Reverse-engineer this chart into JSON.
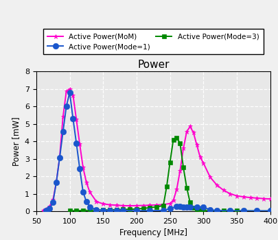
{
  "title": "Power",
  "xlabel": "Frequency [MHz]",
  "ylabel": "Power [mW]",
  "xlim": [
    50,
    400
  ],
  "ylim": [
    0,
    8
  ],
  "yticks": [
    0,
    1,
    2,
    3,
    4,
    5,
    6,
    7,
    8
  ],
  "xticks": [
    50,
    100,
    150,
    200,
    250,
    300,
    350,
    400
  ],
  "plot_bg": "#e8e8e8",
  "fig_bg": "#f0f0f0",
  "series": {
    "mom": {
      "label": "Active Power(MoM)",
      "color": "#ff00cc",
      "marker": "*",
      "marker_size": 5,
      "linewidth": 1.4
    },
    "mode1": {
      "label": "Active Power(Mode=1)",
      "color": "#1a56cc",
      "marker": "o",
      "marker_size": 6,
      "linewidth": 1.4
    },
    "mode3": {
      "label": "Active Power(Mode=3)",
      "color": "#008800",
      "marker": "s",
      "marker_size": 5,
      "linewidth": 1.4
    }
  },
  "mom_x": [
    60,
    65,
    70,
    75,
    80,
    85,
    90,
    95,
    100,
    105,
    110,
    115,
    120,
    125,
    130,
    140,
    150,
    160,
    170,
    180,
    190,
    200,
    210,
    220,
    230,
    240,
    250,
    255,
    260,
    265,
    270,
    275,
    280,
    285,
    290,
    295,
    300,
    310,
    320,
    330,
    340,
    350,
    360,
    370,
    380,
    390,
    400
  ],
  "mom_y": [
    0.05,
    0.12,
    0.28,
    0.65,
    1.65,
    3.1,
    5.4,
    6.85,
    7.0,
    6.65,
    5.25,
    3.85,
    2.5,
    1.65,
    1.1,
    0.55,
    0.42,
    0.37,
    0.34,
    0.32,
    0.31,
    0.32,
    0.33,
    0.34,
    0.36,
    0.38,
    0.44,
    0.62,
    1.25,
    2.3,
    3.6,
    4.55,
    4.85,
    4.5,
    3.8,
    3.1,
    2.75,
    1.95,
    1.5,
    1.2,
    1.0,
    0.88,
    0.82,
    0.78,
    0.75,
    0.72,
    0.7
  ],
  "mode1_x": [
    65,
    70,
    75,
    80,
    85,
    90,
    95,
    100,
    105,
    110,
    115,
    120,
    125,
    130,
    140,
    150,
    160,
    170,
    180,
    200,
    220,
    240,
    250,
    260,
    265,
    270,
    275,
    280,
    290,
    300,
    310,
    320,
    340,
    360,
    380,
    400
  ],
  "mode1_y": [
    0.05,
    0.16,
    0.5,
    1.65,
    3.05,
    4.55,
    6.0,
    6.8,
    5.3,
    3.9,
    2.45,
    1.1,
    0.55,
    0.25,
    0.08,
    0.04,
    0.03,
    0.03,
    0.03,
    0.03,
    0.03,
    0.04,
    0.15,
    0.27,
    0.26,
    0.25,
    0.24,
    0.24,
    0.24,
    0.24,
    0.08,
    0.04,
    0.02,
    0.02,
    0.02,
    0.02
  ],
  "mode3_x": [
    100,
    110,
    120,
    130,
    140,
    150,
    160,
    170,
    180,
    190,
    200,
    210,
    220,
    230,
    240,
    245,
    250,
    255,
    260,
    265,
    270,
    275,
    280,
    285,
    290,
    295,
    300,
    310,
    320,
    330,
    340,
    350,
    360,
    380,
    400
  ],
  "mode3_y": [
    0.02,
    0.03,
    0.04,
    0.05,
    0.06,
    0.07,
    0.08,
    0.09,
    0.1,
    0.11,
    0.13,
    0.16,
    0.2,
    0.25,
    0.32,
    1.4,
    2.8,
    4.1,
    4.2,
    3.9,
    2.5,
    1.35,
    0.5,
    0.18,
    0.12,
    0.08,
    0.06,
    0.04,
    0.03,
    0.03,
    0.02,
    0.02,
    0.02,
    0.01,
    0.01
  ]
}
